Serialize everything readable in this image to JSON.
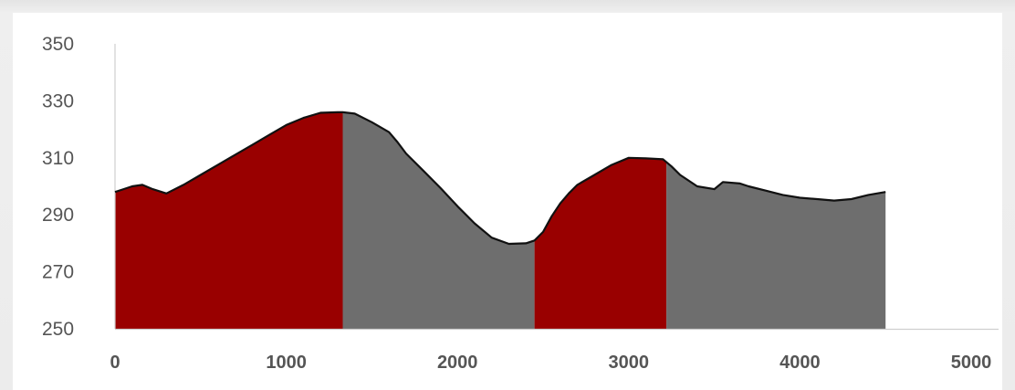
{
  "chart_data": {
    "type": "area",
    "title": "",
    "xlabel": "",
    "ylabel": "",
    "xlim": [
      0,
      5000
    ],
    "ylim": [
      250,
      350
    ],
    "x_ticks": [
      "0",
      "1000",
      "2000",
      "3000",
      "4000",
      "5000"
    ],
    "y_ticks": [
      "350",
      "330",
      "310",
      "290",
      "270",
      "250"
    ],
    "grid": false,
    "legend": "none",
    "series": [
      {
        "x": [
          0,
          100,
          160,
          220,
          300,
          400,
          500,
          600,
          700,
          800,
          900,
          1000,
          1100,
          1200,
          1300,
          1330,
          1400,
          1500,
          1600,
          1650,
          1700,
          1800,
          1900,
          2000,
          2100,
          2200,
          2300,
          2400,
          2450,
          2500,
          2550,
          2600,
          2650,
          2700,
          2800,
          2900,
          3000,
          3100,
          3200,
          3250,
          3300,
          3400,
          3500,
          3550,
          3650,
          3700,
          3800,
          3900,
          4000,
          4100,
          4200,
          4300,
          4400,
          4500
        ],
        "y": [
          298,
          300,
          300.5,
          299,
          297.5,
          300.5,
          304,
          307.5,
          311,
          314.5,
          318,
          321.5,
          324,
          325.8,
          326,
          326,
          325.5,
          322.5,
          319,
          315.5,
          311.5,
          305.5,
          299.5,
          293,
          287,
          282,
          279.8,
          280,
          281,
          284,
          289.5,
          294,
          297.5,
          300.5,
          304,
          307.5,
          310,
          309.8,
          309.5,
          307,
          304,
          300,
          299,
          301.5,
          301,
          300,
          298.5,
          297,
          296,
          295.5,
          295,
          295.5,
          297,
          298
        ]
      }
    ],
    "bands": [
      {
        "from": 0,
        "to": 1330,
        "color": "#990000"
      },
      {
        "from": 1330,
        "to": 2450,
        "color": "#6e6e6e"
      },
      {
        "from": 2450,
        "to": 3220,
        "color": "#990000"
      },
      {
        "from": 3220,
        "to": 4500,
        "color": "#6e6e6e"
      }
    ],
    "outline_color": "#111111",
    "axis_color": "#cfcfcf"
  }
}
